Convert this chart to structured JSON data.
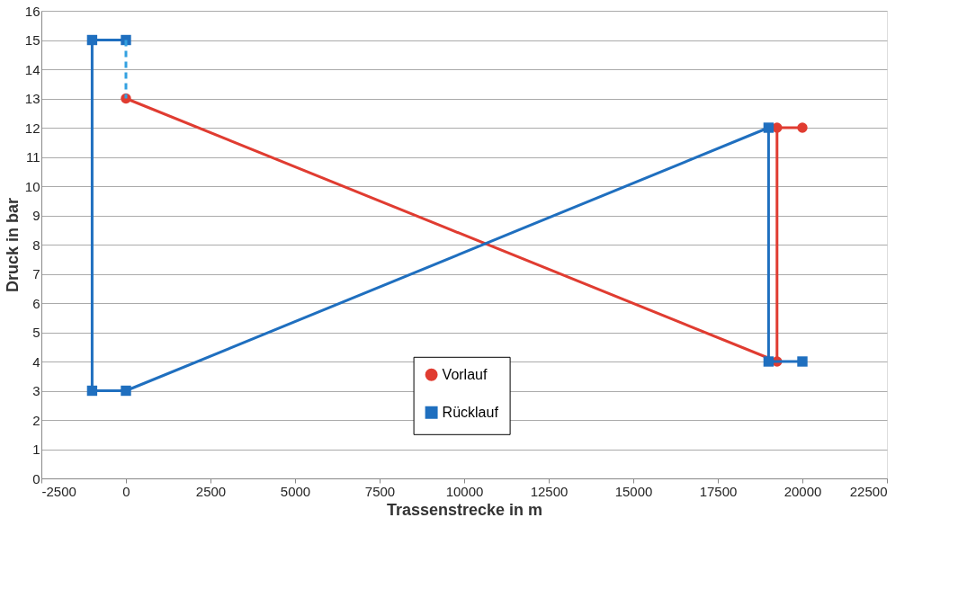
{
  "chart_data": {
    "type": "line",
    "xlabel": "Trassenstrecke in m",
    "ylabel": "Druck in bar",
    "xlim": [
      -2500,
      22500
    ],
    "xticks": [
      -2500,
      0,
      2500,
      5000,
      7500,
      10000,
      12500,
      15000,
      17500,
      20000,
      22500
    ],
    "ylim": [
      0,
      16
    ],
    "yticks": [
      0,
      1,
      2,
      3,
      4,
      5,
      6,
      7,
      8,
      9,
      10,
      11,
      12,
      13,
      14,
      15,
      16
    ],
    "grid": "y",
    "legend": "bottom",
    "series": [
      {
        "name": "Vorlauf",
        "color": "#e03c31",
        "marker": "circle",
        "line_style": "solid",
        "x": [
          0,
          19250,
          19250,
          20000
        ],
        "values": [
          13,
          4,
          12,
          12
        ]
      },
      {
        "name": "Rücklauf",
        "color": "#1f6fbf",
        "marker": "square",
        "line_style": "solid",
        "x": [
          20000,
          19000,
          19000,
          0,
          -1000,
          -1000,
          0
        ],
        "values": [
          4,
          4,
          12,
          3,
          3,
          15,
          15
        ]
      },
      {
        "color": "#33a0e0",
        "marker": "none",
        "line_style": "dashed",
        "x": [
          0,
          0
        ],
        "values": [
          15,
          13
        ]
      }
    ]
  }
}
